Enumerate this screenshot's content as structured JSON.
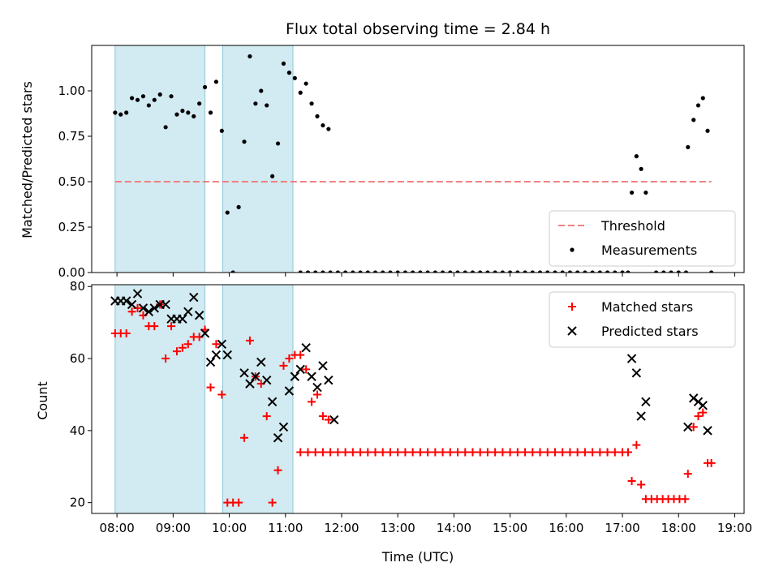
{
  "chart_data": [
    {
      "type": "scatter",
      "title": "Flux total observing time = 2.84 h",
      "xlabel": "",
      "ylabel": "Matched/Predicted stars",
      "x_unit": "time (UTC)",
      "xlim": [
        "07:33",
        "19:10"
      ],
      "ylim": [
        0,
        1.25
      ],
      "yticks": [
        "0.00",
        "0.25",
        "0.50",
        "0.75",
        "1.00"
      ],
      "legend_position": "bottom-right",
      "shaded_intervals": [
        [
          "07:58",
          "09:34"
        ],
        [
          "09:53",
          "11:08"
        ]
      ],
      "shaded_color": "#add8e6",
      "threshold": {
        "name": "Threshold",
        "value": 0.5,
        "x_range": [
          "07:58",
          "18:35"
        ],
        "color": "#f08080",
        "style": "dashed"
      },
      "series": [
        {
          "name": "Measurements",
          "color": "#000000",
          "marker": "dot",
          "points": [
            [
              "07:58",
              0.88
            ],
            [
              "08:04",
              0.87
            ],
            [
              "08:10",
              0.88
            ],
            [
              "08:16",
              0.96
            ],
            [
              "08:22",
              0.95
            ],
            [
              "08:28",
              0.97
            ],
            [
              "08:34",
              0.92
            ],
            [
              "08:40",
              0.95
            ],
            [
              "08:46",
              0.98
            ],
            [
              "08:52",
              0.8
            ],
            [
              "08:58",
              0.97
            ],
            [
              "09:04",
              0.87
            ],
            [
              "09:10",
              0.89
            ],
            [
              "09:16",
              0.88
            ],
            [
              "09:22",
              0.86
            ],
            [
              "09:28",
              0.93
            ],
            [
              "09:34",
              1.02
            ],
            [
              "09:40",
              0.88
            ],
            [
              "09:46",
              1.05
            ],
            [
              "09:52",
              0.78
            ],
            [
              "09:58",
              0.33
            ],
            [
              "10:04",
              0.0
            ],
            [
              "10:10",
              0.36
            ],
            [
              "10:16",
              0.72
            ],
            [
              "10:22",
              1.19
            ],
            [
              "10:28",
              0.93
            ],
            [
              "10:34",
              1.0
            ],
            [
              "10:40",
              0.92
            ],
            [
              "10:46",
              0.53
            ],
            [
              "10:52",
              0.71
            ],
            [
              "10:58",
              1.15
            ],
            [
              "11:04",
              1.1
            ],
            [
              "11:10",
              1.07
            ],
            [
              "11:16",
              0.99
            ],
            [
              "11:22",
              1.04
            ],
            [
              "11:28",
              0.93
            ],
            [
              "11:34",
              0.86
            ],
            [
              "11:40",
              0.81
            ],
            [
              "11:46",
              0.79
            ],
            [
              "11:16",
              0
            ],
            [
              "11:24",
              0
            ],
            [
              "11:32",
              0
            ],
            [
              "11:40",
              0
            ],
            [
              "11:48",
              0
            ],
            [
              "11:56",
              0
            ],
            [
              "12:04",
              0
            ],
            [
              "12:12",
              0
            ],
            [
              "12:20",
              0
            ],
            [
              "12:28",
              0
            ],
            [
              "12:36",
              0
            ],
            [
              "12:44",
              0
            ],
            [
              "12:52",
              0
            ],
            [
              "13:00",
              0
            ],
            [
              "13:08",
              0
            ],
            [
              "13:16",
              0
            ],
            [
              "13:24",
              0
            ],
            [
              "13:32",
              0
            ],
            [
              "13:40",
              0
            ],
            [
              "13:48",
              0
            ],
            [
              "13:56",
              0
            ],
            [
              "14:04",
              0
            ],
            [
              "14:12",
              0
            ],
            [
              "14:20",
              0
            ],
            [
              "14:28",
              0
            ],
            [
              "14:36",
              0
            ],
            [
              "14:44",
              0
            ],
            [
              "14:52",
              0
            ],
            [
              "15:00",
              0
            ],
            [
              "15:08",
              0
            ],
            [
              "15:16",
              0
            ],
            [
              "15:24",
              0
            ],
            [
              "15:32",
              0
            ],
            [
              "15:40",
              0
            ],
            [
              "15:48",
              0
            ],
            [
              "15:56",
              0
            ],
            [
              "16:04",
              0
            ],
            [
              "16:12",
              0
            ],
            [
              "16:20",
              0
            ],
            [
              "16:28",
              0
            ],
            [
              "16:36",
              0
            ],
            [
              "16:44",
              0
            ],
            [
              "16:52",
              0
            ],
            [
              "17:00",
              0
            ],
            [
              "17:06",
              0
            ],
            [
              "17:36",
              0
            ],
            [
              "17:44",
              0
            ],
            [
              "17:52",
              0
            ],
            [
              "18:00",
              0
            ],
            [
              "18:08",
              0
            ],
            [
              "18:35",
              0
            ],
            [
              "17:10",
              0.44
            ],
            [
              "17:15",
              0.64
            ],
            [
              "17:20",
              0.57
            ],
            [
              "17:25",
              0.44
            ],
            [
              "18:10",
              0.69
            ],
            [
              "18:16",
              0.84
            ],
            [
              "18:21",
              0.92
            ],
            [
              "18:26",
              0.96
            ],
            [
              "18:31",
              0.78
            ]
          ]
        }
      ]
    },
    {
      "type": "scatter",
      "title": "",
      "xlabel": "Time (UTC)",
      "ylabel": "Count",
      "x_unit": "time (UTC)",
      "xlim": [
        "07:33",
        "19:10"
      ],
      "ylim": [
        17,
        80.5
      ],
      "yticks": [
        "20",
        "40",
        "60",
        "80"
      ],
      "xticks": [
        "08:00",
        "09:00",
        "10:00",
        "11:00",
        "12:00",
        "13:00",
        "14:00",
        "15:00",
        "16:00",
        "17:00",
        "18:00",
        "19:00"
      ],
      "legend_position": "top-right",
      "shaded_intervals": [
        [
          "07:58",
          "09:34"
        ],
        [
          "09:53",
          "11:08"
        ]
      ],
      "shaded_color": "#add8e6",
      "series": [
        {
          "name": "Matched stars",
          "color": "#ff0000",
          "marker": "plus",
          "points": [
            [
              "07:58",
              67
            ],
            [
              "08:04",
              67
            ],
            [
              "08:10",
              67
            ],
            [
              "08:16",
              73
            ],
            [
              "08:22",
              74
            ],
            [
              "08:28",
              72
            ],
            [
              "08:34",
              69
            ],
            [
              "08:40",
              69
            ],
            [
              "08:46",
              75
            ],
            [
              "08:52",
              60
            ],
            [
              "08:58",
              69
            ],
            [
              "09:04",
              62
            ],
            [
              "09:10",
              63
            ],
            [
              "09:16",
              64
            ],
            [
              "09:22",
              66
            ],
            [
              "09:28",
              66
            ],
            [
              "09:34",
              68
            ],
            [
              "09:40",
              52
            ],
            [
              "09:46",
              64
            ],
            [
              "09:52",
              50
            ],
            [
              "09:58",
              20
            ],
            [
              "10:04",
              20
            ],
            [
              "10:10",
              20
            ],
            [
              "10:16",
              38
            ],
            [
              "10:22",
              65
            ],
            [
              "10:28",
              55
            ],
            [
              "10:34",
              53
            ],
            [
              "10:40",
              44
            ],
            [
              "10:46",
              20
            ],
            [
              "10:52",
              29
            ],
            [
              "10:58",
              58
            ],
            [
              "11:04",
              60
            ],
            [
              "11:10",
              61
            ],
            [
              "11:16",
              61
            ],
            [
              "11:22",
              57
            ],
            [
              "11:28",
              48
            ],
            [
              "11:34",
              50
            ],
            [
              "11:40",
              44
            ],
            [
              "11:46",
              43
            ],
            [
              "11:16",
              34
            ],
            [
              "11:24",
              34
            ],
            [
              "11:32",
              34
            ],
            [
              "11:40",
              34
            ],
            [
              "11:48",
              34
            ],
            [
              "11:56",
              34
            ],
            [
              "12:04",
              34
            ],
            [
              "12:12",
              34
            ],
            [
              "12:20",
              34
            ],
            [
              "12:28",
              34
            ],
            [
              "12:36",
              34
            ],
            [
              "12:44",
              34
            ],
            [
              "12:52",
              34
            ],
            [
              "13:00",
              34
            ],
            [
              "13:08",
              34
            ],
            [
              "13:16",
              34
            ],
            [
              "13:24",
              34
            ],
            [
              "13:32",
              34
            ],
            [
              "13:40",
              34
            ],
            [
              "13:48",
              34
            ],
            [
              "13:56",
              34
            ],
            [
              "14:04",
              34
            ],
            [
              "14:12",
              34
            ],
            [
              "14:20",
              34
            ],
            [
              "14:28",
              34
            ],
            [
              "14:36",
              34
            ],
            [
              "14:44",
              34
            ],
            [
              "14:52",
              34
            ],
            [
              "15:00",
              34
            ],
            [
              "15:08",
              34
            ],
            [
              "15:16",
              34
            ],
            [
              "15:24",
              34
            ],
            [
              "15:32",
              34
            ],
            [
              "15:40",
              34
            ],
            [
              "15:48",
              34
            ],
            [
              "15:56",
              34
            ],
            [
              "16:04",
              34
            ],
            [
              "16:12",
              34
            ],
            [
              "16:20",
              34
            ],
            [
              "16:28",
              34
            ],
            [
              "16:36",
              34
            ],
            [
              "16:44",
              34
            ],
            [
              "16:52",
              34
            ],
            [
              "17:00",
              34
            ],
            [
              "17:06",
              34
            ],
            [
              "17:10",
              26
            ],
            [
              "17:15",
              36
            ],
            [
              "17:20",
              25
            ],
            [
              "17:25",
              21
            ],
            [
              "17:31",
              21
            ],
            [
              "17:37",
              21
            ],
            [
              "17:43",
              21
            ],
            [
              "17:49",
              21
            ],
            [
              "17:55",
              21
            ],
            [
              "18:01",
              21
            ],
            [
              "18:07",
              21
            ],
            [
              "18:10",
              28
            ],
            [
              "18:16",
              41
            ],
            [
              "18:21",
              44
            ],
            [
              "18:26",
              45
            ],
            [
              "18:31",
              31
            ],
            [
              "18:35",
              31
            ]
          ]
        },
        {
          "name": "Predicted stars",
          "color": "#000000",
          "marker": "x",
          "points": [
            [
              "07:58",
              76
            ],
            [
              "08:04",
              76
            ],
            [
              "08:10",
              76
            ],
            [
              "08:16",
              75
            ],
            [
              "08:22",
              78
            ],
            [
              "08:28",
              74
            ],
            [
              "08:34",
              73
            ],
            [
              "08:40",
              74
            ],
            [
              "08:46",
              75
            ],
            [
              "08:52",
              75
            ],
            [
              "08:58",
              71
            ],
            [
              "09:04",
              71
            ],
            [
              "09:10",
              71
            ],
            [
              "09:16",
              73
            ],
            [
              "09:22",
              77
            ],
            [
              "09:28",
              72
            ],
            [
              "09:34",
              67
            ],
            [
              "09:40",
              59
            ],
            [
              "09:46",
              61
            ],
            [
              "09:52",
              64
            ],
            [
              "09:58",
              61
            ],
            [
              "10:16",
              56
            ],
            [
              "10:22",
              53
            ],
            [
              "10:28",
              55
            ],
            [
              "10:34",
              59
            ],
            [
              "10:40",
              54
            ],
            [
              "10:46",
              48
            ],
            [
              "10:52",
              38
            ],
            [
              "10:58",
              41
            ],
            [
              "11:04",
              51
            ],
            [
              "11:10",
              55
            ],
            [
              "11:16",
              57
            ],
            [
              "11:22",
              63
            ],
            [
              "11:28",
              55
            ],
            [
              "11:34",
              52
            ],
            [
              "11:40",
              58
            ],
            [
              "11:46",
              54
            ],
            [
              "11:52",
              43
            ],
            [
              "17:10",
              60
            ],
            [
              "17:15",
              56
            ],
            [
              "17:20",
              44
            ],
            [
              "17:25",
              48
            ],
            [
              "18:10",
              41
            ],
            [
              "18:16",
              49
            ],
            [
              "18:21",
              48
            ],
            [
              "18:26",
              47
            ],
            [
              "18:31",
              40
            ]
          ]
        }
      ]
    }
  ]
}
